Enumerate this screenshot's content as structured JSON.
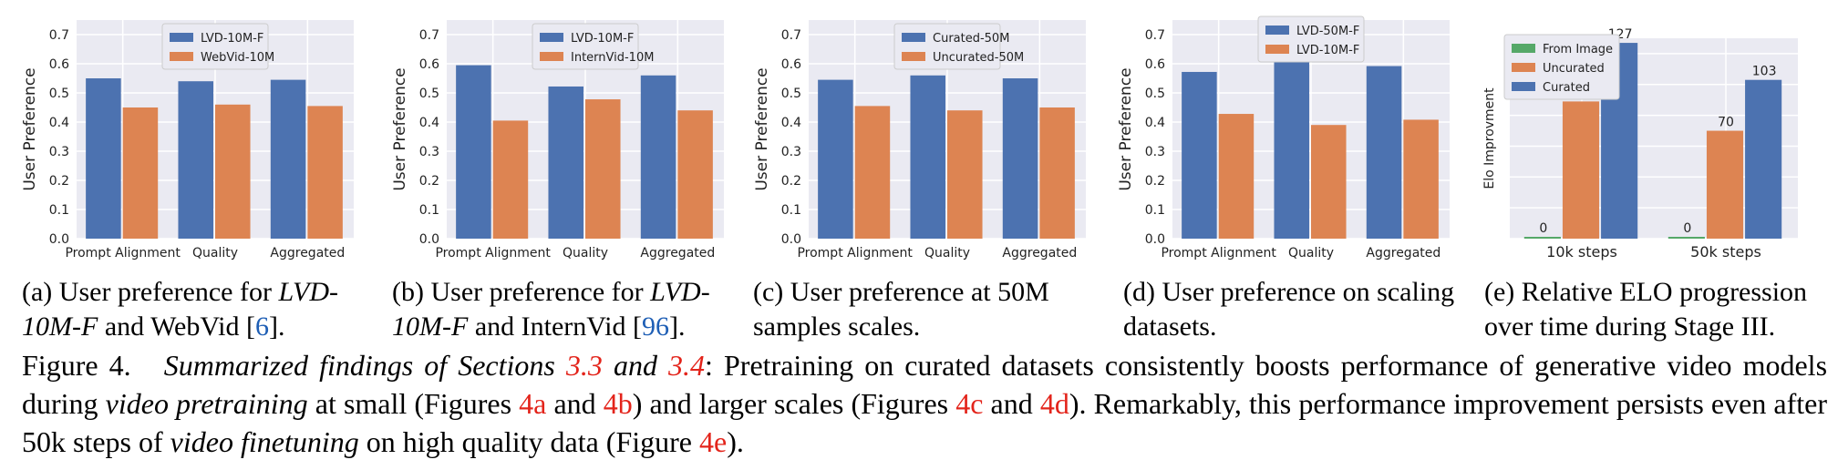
{
  "chart_data": [
    {
      "id": "a",
      "type": "bar",
      "ylabel": "User Preference",
      "ylim": [
        0,
        0.75
      ],
      "yticks": [
        "0.0",
        "0.1",
        "0.2",
        "0.3",
        "0.4",
        "0.5",
        "0.6",
        "0.7"
      ],
      "categories": [
        "Prompt Alignment",
        "Quality",
        "Aggregated"
      ],
      "legend_placement": "top-center",
      "series": [
        {
          "name": "LVD-10M-F",
          "color": "#4c72b0",
          "values": [
            0.55,
            0.54,
            0.545
          ]
        },
        {
          "name": "WebVid-10M",
          "color": "#dd8452",
          "values": [
            0.45,
            0.46,
            0.455
          ]
        }
      ],
      "grid": true
    },
    {
      "id": "b",
      "type": "bar",
      "ylabel": "User Preference",
      "ylim": [
        0,
        0.75
      ],
      "yticks": [
        "0.0",
        "0.1",
        "0.2",
        "0.3",
        "0.4",
        "0.5",
        "0.6",
        "0.7"
      ],
      "categories": [
        "Prompt Alignment",
        "Quality",
        "Aggregated"
      ],
      "legend_placement": "top-center",
      "series": [
        {
          "name": "LVD-10M-F",
          "color": "#4c72b0",
          "values": [
            0.595,
            0.522,
            0.56
          ]
        },
        {
          "name": "InternVid-10M",
          "color": "#dd8452",
          "values": [
            0.405,
            0.478,
            0.44
          ]
        }
      ],
      "grid": true
    },
    {
      "id": "c",
      "type": "bar",
      "ylabel": "User Preference",
      "ylim": [
        0,
        0.75
      ],
      "yticks": [
        "0.0",
        "0.1",
        "0.2",
        "0.3",
        "0.4",
        "0.5",
        "0.6",
        "0.7"
      ],
      "categories": [
        "Prompt Alignment",
        "Quality",
        "Aggregated"
      ],
      "legend_placement": "top-center",
      "series": [
        {
          "name": "Curated-50M",
          "color": "#4c72b0",
          "values": [
            0.545,
            0.56,
            0.55
          ]
        },
        {
          "name": "Uncurated-50M",
          "color": "#dd8452",
          "values": [
            0.455,
            0.44,
            0.45
          ]
        }
      ],
      "grid": true
    },
    {
      "id": "d",
      "type": "bar",
      "ylabel": "User Preference",
      "ylim": [
        0,
        0.75
      ],
      "yticks": [
        "0.0",
        "0.1",
        "0.2",
        "0.3",
        "0.4",
        "0.5",
        "0.6",
        "0.7"
      ],
      "categories": [
        "Prompt Alignment",
        "Quality",
        "Aggregated"
      ],
      "legend_placement": "top-center",
      "series": [
        {
          "name": "LVD-50M-F",
          "color": "#4c72b0",
          "values": [
            0.572,
            0.61,
            0.592
          ]
        },
        {
          "name": "LVD-10M-F",
          "color": "#dd8452",
          "values": [
            0.428,
            0.39,
            0.408
          ]
        }
      ],
      "grid": true
    },
    {
      "id": "e",
      "type": "bar",
      "ylabel": "Elo Improvment",
      "ylim": [
        0,
        130
      ],
      "categories": [
        "10k steps",
        "50k steps"
      ],
      "legend_placement": "top-left",
      "series": [
        {
          "name": "From Image",
          "color": "#55a868",
          "values": [
            0,
            0
          ],
          "labels": [
            "0",
            "0"
          ]
        },
        {
          "name": "Uncurated",
          "color": "#dd8452",
          "values": [
            89,
            70
          ],
          "labels": [
            "89",
            "70"
          ]
        },
        {
          "name": "Curated",
          "color": "#4c72b0",
          "values": [
            127,
            103
          ],
          "labels": [
            "127",
            "103"
          ]
        }
      ],
      "grid": true
    }
  ],
  "subcaptions": {
    "a": {
      "prefix": "(a)  User preference for ",
      "italic": "LVD-10M-F",
      "rest": " and WebVid [",
      "ref": "6",
      "end": "]."
    },
    "b": {
      "prefix": "(b)  User preference for ",
      "italic": "LVD-10M-F",
      "rest": " and InternVid [",
      "ref": "96",
      "end": "]."
    },
    "c": {
      "text": "(c)   User preference at 50M samples scales."
    },
    "d": {
      "text": "(d)   User preference on scaling datasets."
    },
    "e": {
      "text": "(e)  Relative ELO progression over time during Stage III."
    }
  },
  "main_caption": {
    "fig_label": "Figure 4.",
    "italic_lead": "Summarized findings of Sections ",
    "sec1": "3.3",
    "and_word": " and ",
    "sec2": "3.4",
    "colon": ":",
    "t1": " Pretraining on curated datasets consistently boosts performance of generative video models during ",
    "i1": "video pretraining",
    "t2": " at small (Figures ",
    "r1": "4a",
    "t3": " and ",
    "r2": "4b",
    "t4": ") and larger scales (Figures ",
    "r3": "4c",
    "t5": " and ",
    "r4": "4d",
    "t6": "). Remarkably, this performance improvement persists even after 50k steps of ",
    "i2": "video finetuning",
    "t7": " on high quality data (Figure ",
    "r5": "4e",
    "t8": ")."
  }
}
